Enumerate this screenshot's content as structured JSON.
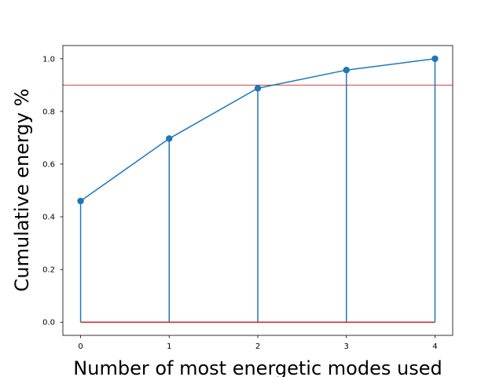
{
  "chart_data": {
    "type": "line",
    "subtype": "stem_with_line",
    "title": "",
    "xlabel": "Number of most energetic modes used",
    "ylabel": "Cumulative energy %",
    "x": [
      0,
      1,
      2,
      3,
      4
    ],
    "y": [
      0.46,
      0.697,
      0.888,
      0.957,
      1.0
    ],
    "xlim": [
      -0.2,
      4.2
    ],
    "ylim": [
      -0.05,
      1.05
    ],
    "xticks": [
      0,
      1,
      2,
      3,
      4
    ],
    "xtick_labels": [
      "0",
      "1",
      "2",
      "3",
      "4"
    ],
    "yticks": [
      0.0,
      0.2,
      0.4,
      0.6,
      0.8,
      1.0
    ],
    "ytick_labels": [
      "0.0",
      "0.2",
      "0.4",
      "0.6",
      "0.8",
      "1.0"
    ],
    "threshold": 0.9,
    "baseline": 0.0,
    "grid": false,
    "colors": {
      "series": "#1f77b4",
      "threshold": "#d62728",
      "baseline": "#d62728",
      "axes": "#000000"
    }
  }
}
